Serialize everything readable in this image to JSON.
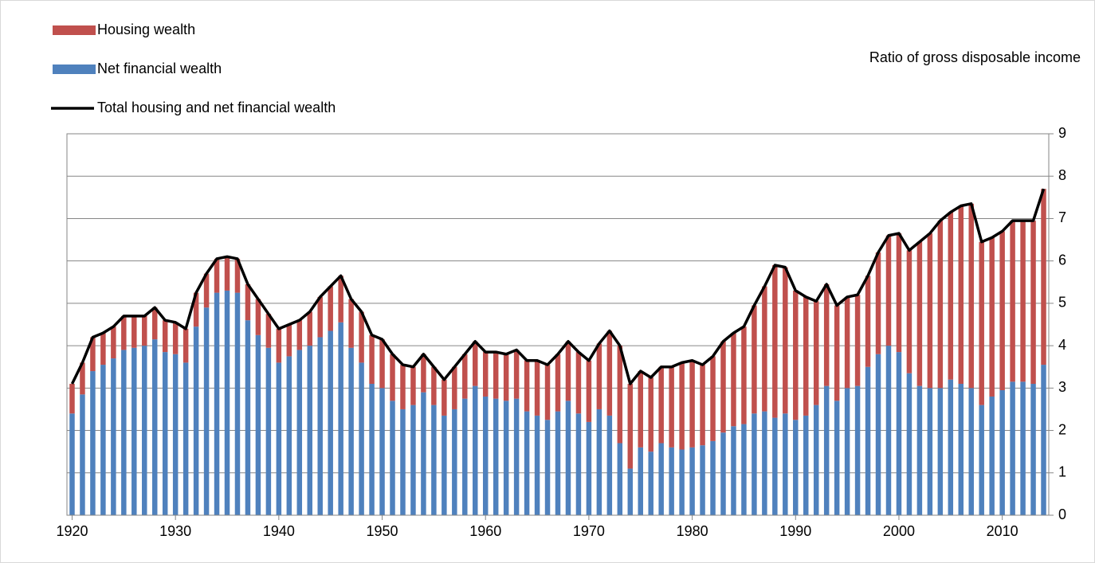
{
  "chart_data": {
    "type": "bar",
    "stacked": true,
    "y_axis_label": "Ratio of gross disposable income",
    "y_axis_side": "right",
    "legend": "top-left",
    "grid": true,
    "ylim": [
      0,
      9
    ],
    "yticks": [
      0,
      1,
      2,
      3,
      4,
      5,
      6,
      7,
      8,
      9
    ],
    "xlim": [
      1919.5,
      2014.5
    ],
    "xticks": [
      1920,
      1930,
      1940,
      1950,
      1960,
      1970,
      1980,
      1990,
      2000,
      2010
    ],
    "x": [
      1920,
      1921,
      1922,
      1923,
      1924,
      1925,
      1926,
      1927,
      1928,
      1929,
      1930,
      1931,
      1932,
      1933,
      1934,
      1935,
      1936,
      1937,
      1938,
      1939,
      1940,
      1941,
      1942,
      1943,
      1944,
      1945,
      1946,
      1947,
      1948,
      1949,
      1950,
      1951,
      1952,
      1953,
      1954,
      1955,
      1956,
      1957,
      1958,
      1959,
      1960,
      1961,
      1962,
      1963,
      1964,
      1965,
      1966,
      1967,
      1968,
      1969,
      1970,
      1971,
      1972,
      1973,
      1974,
      1975,
      1976,
      1977,
      1978,
      1979,
      1980,
      1981,
      1982,
      1983,
      1984,
      1985,
      1986,
      1987,
      1988,
      1989,
      1990,
      1991,
      1992,
      1993,
      1994,
      1995,
      1996,
      1997,
      1998,
      1999,
      2000,
      2001,
      2002,
      2003,
      2004,
      2005,
      2006,
      2007,
      2008,
      2009,
      2010,
      2011,
      2012,
      2013,
      2014
    ],
    "series": [
      {
        "name": "Housing wealth",
        "color": "#c0504d",
        "values": [
          0.7,
          0.75,
          0.8,
          0.75,
          0.75,
          0.8,
          0.75,
          0.7,
          0.75,
          0.75,
          0.75,
          0.8,
          0.8,
          0.8,
          0.8,
          0.8,
          0.8,
          0.85,
          0.85,
          0.8,
          0.8,
          0.75,
          0.7,
          0.8,
          0.95,
          1.05,
          1.1,
          1.15,
          1.2,
          1.15,
          1.15,
          1.1,
          1.05,
          0.9,
          0.9,
          0.9,
          0.85,
          1.0,
          1.05,
          1.05,
          1.05,
          1.1,
          1.1,
          1.15,
          1.2,
          1.3,
          1.3,
          1.35,
          1.4,
          1.45,
          1.45,
          1.55,
          2.0,
          2.3,
          2.0,
          1.8,
          1.75,
          1.8,
          1.9,
          2.05,
          2.05,
          1.9,
          2.0,
          2.15,
          2.2,
          2.3,
          2.55,
          2.95,
          3.6,
          3.45,
          3.05,
          2.8,
          2.45,
          2.4,
          2.25,
          2.15,
          2.15,
          2.15,
          2.4,
          2.6,
          2.8,
          2.9,
          3.4,
          3.65,
          3.95,
          3.95,
          4.2,
          4.35,
          3.85,
          3.75,
          3.75,
          3.8,
          3.8,
          3.85,
          4.15
        ]
      },
      {
        "name": "Net financial wealth",
        "color": "#4f81bd",
        "values": [
          2.4,
          2.85,
          3.4,
          3.55,
          3.7,
          3.9,
          3.95,
          4.0,
          4.15,
          3.85,
          3.8,
          3.6,
          4.45,
          4.9,
          5.25,
          5.3,
          5.25,
          4.6,
          4.25,
          3.95,
          3.6,
          3.75,
          3.9,
          4.0,
          4.2,
          4.35,
          4.55,
          3.95,
          3.6,
          3.1,
          3.0,
          2.7,
          2.5,
          2.6,
          2.9,
          2.6,
          2.35,
          2.5,
          2.75,
          3.05,
          2.8,
          2.75,
          2.7,
          2.75,
          2.45,
          2.35,
          2.25,
          2.45,
          2.7,
          2.4,
          2.2,
          2.5,
          2.35,
          1.7,
          1.1,
          1.6,
          1.5,
          1.7,
          1.6,
          1.55,
          1.6,
          1.65,
          1.75,
          1.95,
          2.1,
          2.15,
          2.4,
          2.45,
          2.3,
          2.4,
          2.25,
          2.35,
          2.6,
          3.05,
          2.7,
          3.0,
          3.05,
          3.5,
          3.8,
          4.0,
          3.85,
          3.35,
          3.05,
          3.0,
          3.0,
          3.2,
          3.1,
          3.0,
          2.6,
          2.8,
          2.95,
          3.15,
          3.15,
          3.1,
          3.55
        ]
      },
      {
        "name": "Total housing and net financial wealth",
        "type": "line",
        "color": "#000000",
        "values": [
          3.1,
          3.6,
          4.2,
          4.3,
          4.45,
          4.7,
          4.7,
          4.7,
          4.9,
          4.6,
          4.55,
          4.4,
          5.25,
          5.7,
          6.05,
          6.1,
          6.05,
          5.45,
          5.1,
          4.75,
          4.4,
          4.5,
          4.6,
          4.8,
          5.15,
          5.4,
          5.65,
          5.1,
          4.8,
          4.25,
          4.15,
          3.8,
          3.55,
          3.5,
          3.8,
          3.5,
          3.2,
          3.5,
          3.8,
          4.1,
          3.85,
          3.85,
          3.8,
          3.9,
          3.65,
          3.65,
          3.55,
          3.8,
          4.1,
          3.85,
          3.65,
          4.05,
          4.35,
          4.0,
          3.1,
          3.4,
          3.25,
          3.5,
          3.5,
          3.6,
          3.65,
          3.55,
          3.75,
          4.1,
          4.3,
          4.45,
          4.95,
          5.4,
          5.9,
          5.85,
          5.3,
          5.15,
          5.05,
          5.45,
          4.95,
          5.15,
          5.2,
          5.65,
          6.2,
          6.6,
          6.65,
          6.25,
          6.45,
          6.65,
          6.95,
          7.15,
          7.3,
          7.35,
          6.45,
          6.55,
          6.7,
          6.95,
          6.95,
          6.95,
          7.7
        ]
      }
    ]
  }
}
